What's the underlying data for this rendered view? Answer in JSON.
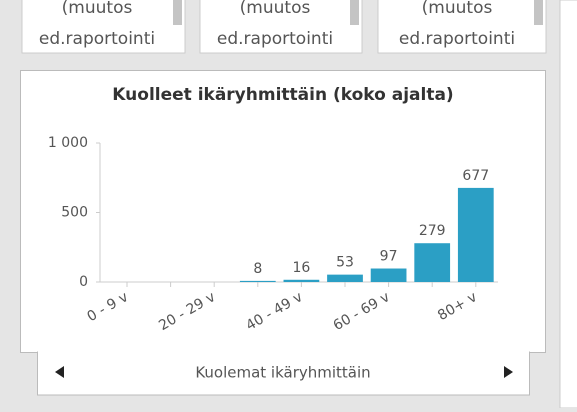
{
  "cards": [
    {
      "line1": "(muutos",
      "line2": "ed.raportointi"
    },
    {
      "line1": "(muutos",
      "line2": "ed.raportointi"
    },
    {
      "line1": "(muutos",
      "line2": "ed.raportointi"
    }
  ],
  "chart_data": {
    "type": "bar",
    "title": "Kuolleet ikäryhmittäin (koko ajalta)",
    "categories": [
      "0 - 9 v",
      null,
      "20 - 29 v",
      null,
      "40 - 49 v",
      null,
      "60 - 69 v",
      null,
      "80+ v"
    ],
    "values": [
      null,
      null,
      null,
      8,
      16,
      53,
      97,
      279,
      677
    ],
    "color": "#2b9fc5",
    "ylim": [
      0,
      1000
    ],
    "yticks": [
      0,
      500,
      {
        "value": 1000,
        "label": "1 000"
      }
    ],
    "grid": false
  },
  "navigator": {
    "label": "Kuolemat ikäryhmittäin"
  }
}
